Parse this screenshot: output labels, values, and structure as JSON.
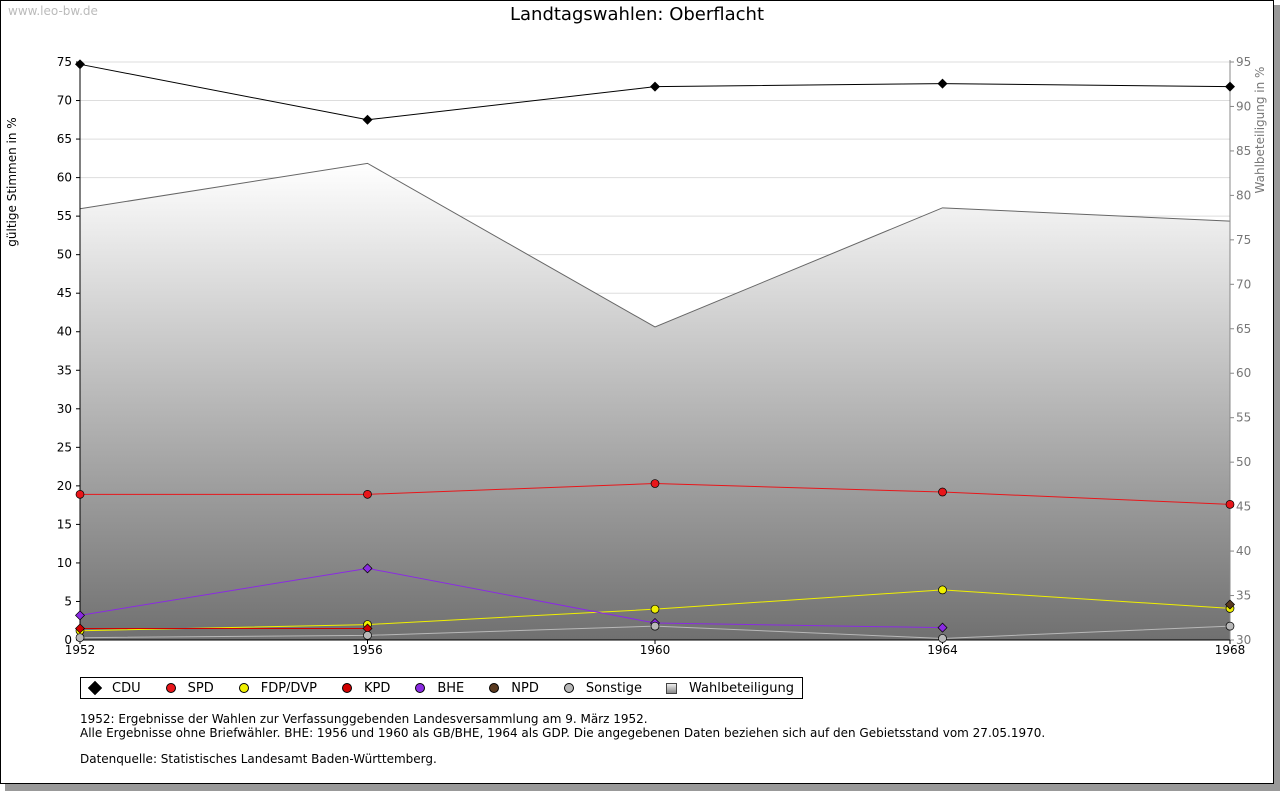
{
  "watermark": "www.leo-bw.de",
  "chart_data": {
    "type": "line",
    "title": "Landtagswahlen: Oberflacht",
    "ylabel": "gültige Stimmen in %",
    "y2label": "Wahlbeteiligung in %",
    "ylim": [
      0,
      75
    ],
    "y2lim": [
      30,
      95
    ],
    "yticks": [
      "0",
      "5",
      "10",
      "15",
      "20",
      "25",
      "30",
      "35",
      "40",
      "45",
      "50",
      "55",
      "60",
      "65",
      "70",
      "75"
    ],
    "y2ticks": [
      "30",
      "35",
      "40",
      "45",
      "50",
      "55",
      "60",
      "65",
      "70",
      "75",
      "80",
      "85",
      "90",
      "95"
    ],
    "categories": [
      "1952",
      "1956",
      "1960",
      "1964",
      "1968"
    ],
    "series": [
      {
        "name": "CDU",
        "color": "#000000",
        "marker": "diamond",
        "values": [
          74.7,
          67.5,
          71.8,
          72.2,
          71.8
        ]
      },
      {
        "name": "SPD",
        "color": "#e8161a",
        "marker": "circle",
        "values": [
          18.9,
          18.9,
          20.3,
          19.2,
          17.6
        ]
      },
      {
        "name": "FDP/DVP",
        "color": "#f0f000",
        "marker": "circle",
        "values": [
          1.2,
          2.0,
          4.0,
          6.5,
          4.1
        ]
      },
      {
        "name": "KPD",
        "color": "#d00000",
        "marker": "diamond",
        "values": [
          1.5,
          1.5,
          null,
          null,
          null
        ]
      },
      {
        "name": "BHE",
        "color": "#8a2be2",
        "marker": "diamond",
        "values": [
          3.2,
          9.3,
          2.2,
          1.6,
          null
        ]
      },
      {
        "name": "NPD",
        "color": "#5a3a20",
        "marker": "diamond",
        "values": [
          null,
          null,
          null,
          null,
          4.6
        ]
      },
      {
        "name": "Sonstige",
        "color": "#b8b8b8",
        "marker": "circle",
        "values": [
          0.3,
          0.6,
          1.8,
          0.2,
          1.8
        ]
      }
    ],
    "turnout": {
      "name": "Wahlbeteiligung",
      "axis": "right",
      "values": [
        78.5,
        83.6,
        65.2,
        78.6,
        77.1
      ]
    }
  },
  "legend": [
    {
      "label": "CDU",
      "color": "#000000",
      "shape": "diamond"
    },
    {
      "label": "SPD",
      "color": "#e8161a",
      "shape": "circle"
    },
    {
      "label": "FDP/DVP",
      "color": "#f0f000",
      "shape": "circle"
    },
    {
      "label": "KPD",
      "color": "#d00000",
      "shape": "circle"
    },
    {
      "label": "BHE",
      "color": "#8a2be2",
      "shape": "circle"
    },
    {
      "label": "NPD",
      "color": "#5a3a20",
      "shape": "circle"
    },
    {
      "label": "Sonstige",
      "color": "#b8b8b8",
      "shape": "circle"
    },
    {
      "label": "Wahlbeteiligung",
      "color": "#aaaaaa",
      "shape": "square"
    }
  ],
  "notes": {
    "line1": "1952: Ergebnisse der Wahlen zur Verfassunggebenden Landesversammlung am 9. März 1952.",
    "line2": "Alle Ergebnisse ohne Briefwähler. BHE: 1956 und 1960 als GB/BHE, 1964 als GDP. Die angegebenen Daten beziehen sich auf den Gebietsstand vom 27.05.1970.",
    "source": "Datenquelle: Statistisches Landesamt Baden-Württemberg."
  }
}
